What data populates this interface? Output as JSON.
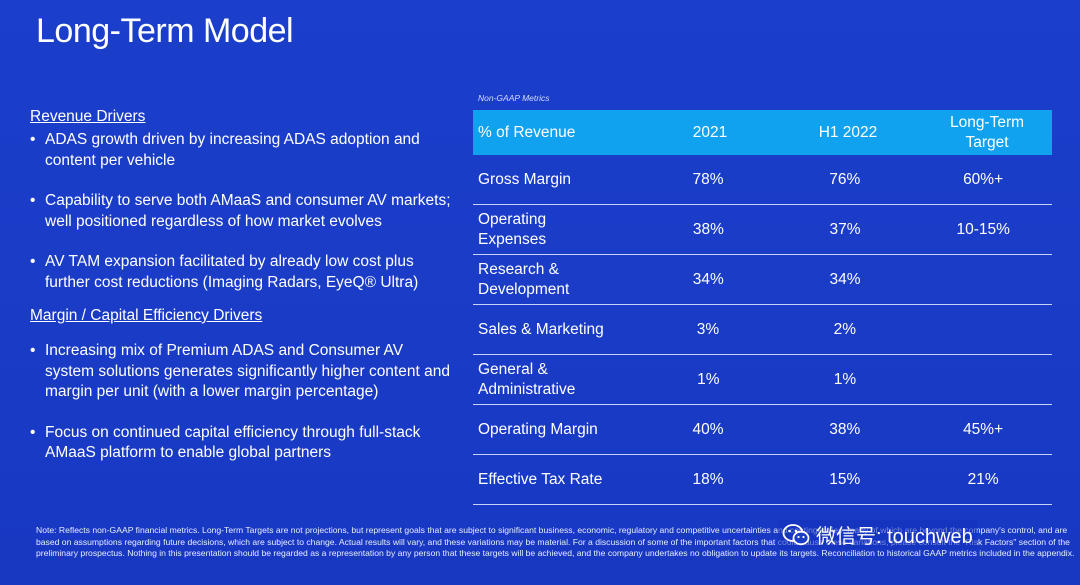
{
  "title": "Long-Term Model",
  "left": {
    "revenue_head": "Revenue Drivers",
    "revenue_bullets": [
      "ADAS growth driven by increasing ADAS adoption and content per vehicle",
      "Capability to serve both AMaaS and consumer AV markets; well positioned regardless of how market evolves",
      "AV TAM expansion facilitated by already low cost plus further cost reductions (Imaging Radars, EyeQ® Ultra)"
    ],
    "margin_head": "Margin / Capital Efficiency Drivers",
    "margin_bullets": [
      "Increasing mix of Premium ADAS and Consumer AV system solutions generates significantly higher content and margin per unit (with a lower margin percentage)",
      "Focus on continued capital efficiency through full-stack AMaaS platform to enable global partners"
    ]
  },
  "table": {
    "caption": "Non-GAAP Metrics",
    "headers": [
      "% of Revenue",
      "2021",
      "H1 2022",
      "Long-Term Target"
    ],
    "rows": [
      [
        "Gross Margin",
        "78%",
        "76%",
        "60%+"
      ],
      [
        "Operating Expenses",
        "38%",
        "37%",
        "10-15%"
      ],
      [
        "Research & Development",
        "34%",
        "34%",
        ""
      ],
      [
        "Sales & Marketing",
        "3%",
        "2%",
        ""
      ],
      [
        "General & Administrative",
        "1%",
        "1%",
        ""
      ],
      [
        "Operating Margin",
        "40%",
        "38%",
        "45%+"
      ],
      [
        "Effective Tax Rate",
        "18%",
        "15%",
        "21%"
      ]
    ]
  },
  "note": "Note: Reflects non-GAAP financial metrics. Long-Term Targets are not projections, but represent goals that are subject to significant business, economic, regulatory and competitive uncertainties and contingencies, many of which are beyond the company's control, and are based on assumptions regarding future decisions, which are subject to change. Actual results will vary, and these variations may be material. For a discussion of some of the important factors that could cause these variations, please consult the \"Risk Factors\" section of the preliminary prospectus. Nothing in this presentation should be regarded as a representation by any person that these targets will be achieved, and the company undertakes no obligation to update its targets. Reconciliation to historical GAAP metrics included in the appendix.",
  "watermark": {
    "text": "微信号: touchweb",
    "icon": "wechat-icon"
  }
}
